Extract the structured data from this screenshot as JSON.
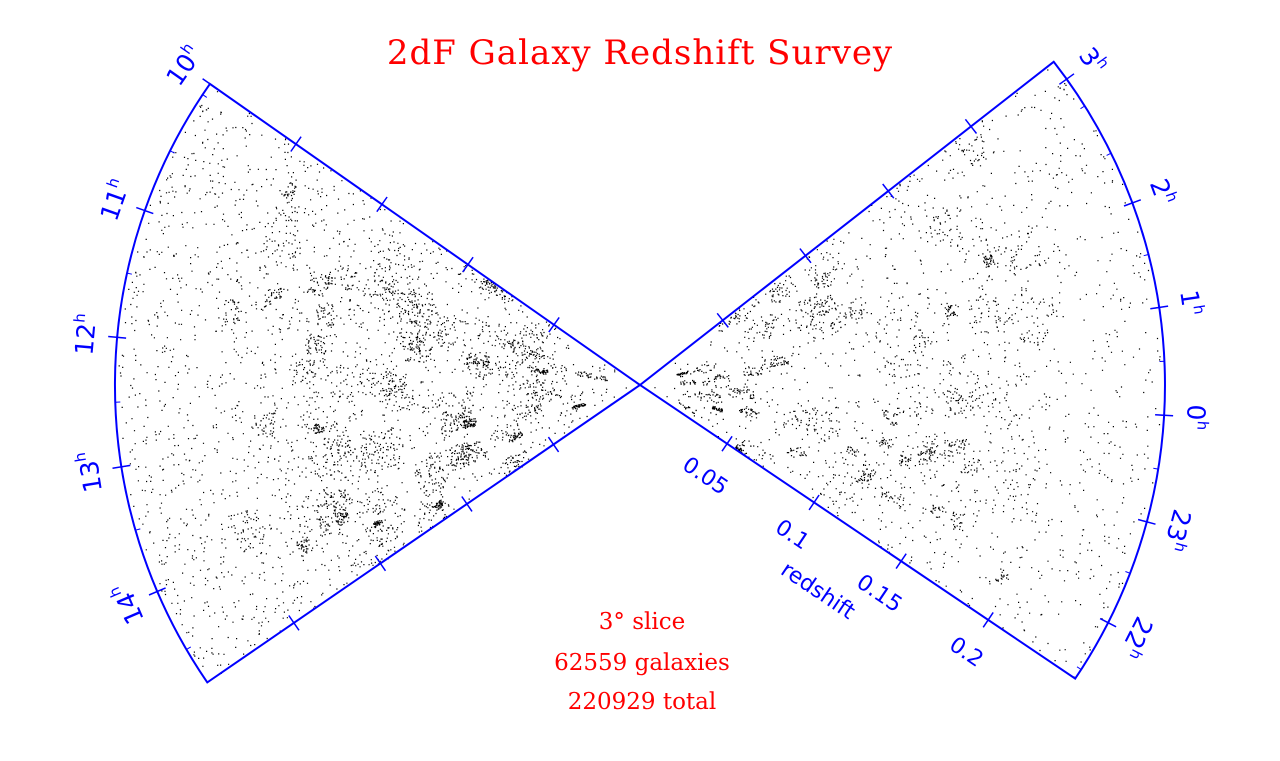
{
  "chart_data": {
    "type": "scatter",
    "title": "2dF Galaxy Redshift Survey",
    "projection": "polar cone diagram (right ascension vs redshift)",
    "colors": {
      "title": "#ff0000",
      "axes": "#0000ff",
      "points": "#000000",
      "info": "#ff0000"
    },
    "radial_axis": {
      "label": "redshift",
      "ticks": [
        "0.05",
        "0.1",
        "0.15",
        "0.2"
      ],
      "tick_values": [
        0.05,
        0.1,
        0.15,
        0.2
      ],
      "range": [
        0,
        0.25
      ]
    },
    "cones": [
      {
        "name": "north",
        "ra_hour_labels": [
          {
            "hour": "10",
            "sup": "h",
            "value_h": 9.9
          },
          {
            "hour": "11",
            "sup": "h",
            "value_h": 11.0
          },
          {
            "hour": "12",
            "sup": "h",
            "value_h": 12.0
          },
          {
            "hour": "13",
            "sup": "h",
            "value_h": 13.0
          },
          {
            "hour": "14",
            "sup": "h",
            "value_h": 14.0
          }
        ],
        "ra_range_h": [
          9.9,
          14.8
        ]
      },
      {
        "name": "south",
        "ra_hour_labels": [
          {
            "hour": "3",
            "sup": "h",
            "value_h": 3.3
          },
          {
            "hour": "2",
            "sup": "h",
            "value_h": 2.0
          },
          {
            "hour": "1",
            "sup": "h",
            "value_h": 1.0
          },
          {
            "hour": "0",
            "sup": "h",
            "value_h": 0.0
          },
          {
            "hour": "23",
            "sup": "h",
            "value_h": -1.0
          },
          {
            "hour": "22",
            "sup": "h",
            "value_h": -2.0
          }
        ],
        "ra_range_h": [
          -2.6,
          3.5
        ]
      }
    ],
    "grid": false,
    "legend": "none"
  },
  "info": {
    "slice": "3° slice",
    "galaxies": "62559 galaxies",
    "total": "220929 total"
  }
}
